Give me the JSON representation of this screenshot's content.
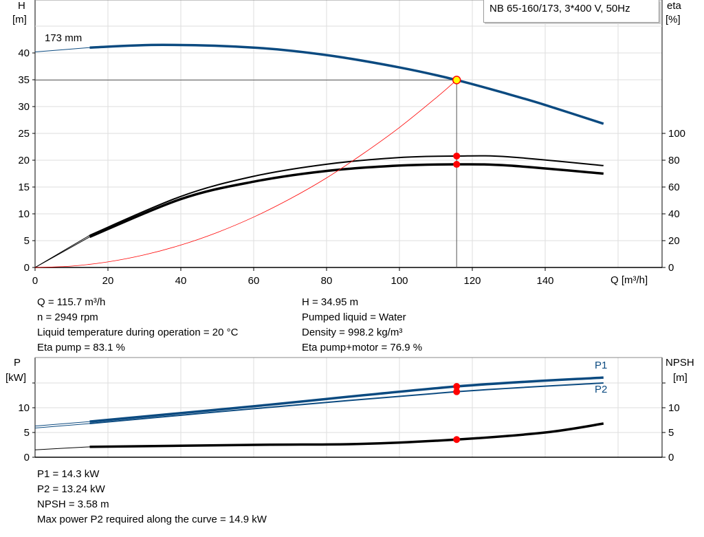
{
  "chart_data": [
    {
      "type": "line",
      "title": "NB 65-160/173, 3*400 V, 50Hz",
      "xlabel": "Q [m³/h]",
      "ylabel": [
        "H",
        "[m]"
      ],
      "y2label": [
        "eta",
        "[%]"
      ],
      "xlim": [
        0,
        170
      ],
      "ylim": [
        0,
        45
      ],
      "y2lim": [
        0,
        100
      ],
      "xticks": [
        0,
        20,
        40,
        60,
        80,
        100,
        120,
        140
      ],
      "yticks": [
        0,
        5,
        10,
        15,
        20,
        25,
        30,
        35,
        40
      ],
      "y2ticks": [
        0,
        20,
        40,
        60,
        80,
        100
      ],
      "grid": true,
      "curve_label": "173 mm",
      "series": [
        {
          "axis": "left",
          "color": "#0b4a80",
          "x": [
            0,
            15,
            35,
            60,
            80,
            100,
            115.7,
            130,
            140,
            156
          ],
          "y": [
            40.2,
            41,
            41.5,
            41,
            39.6,
            37.3,
            34.95,
            32.3,
            30.3,
            26.8
          ]
        },
        {
          "axis": "right",
          "color": "#000000",
          "x": [
            0,
            15,
            40,
            60,
            80,
            100,
            115.7,
            130,
            156
          ],
          "y": [
            0,
            24,
            53,
            68,
            77,
            82,
            83.1,
            82.5,
            76
          ]
        },
        {
          "axis": "right",
          "color": "#000000",
          "x": [
            0,
            15,
            40,
            60,
            80,
            100,
            115.7,
            130,
            156
          ],
          "y": [
            0,
            22.8,
            51,
            64,
            72,
            76,
            76.9,
            76,
            70
          ]
        },
        {
          "axis": "left",
          "color": "#ff0000",
          "x": [
            0,
            10,
            20,
            30,
            40,
            50,
            60,
            70,
            80,
            90,
            100,
            110,
            115.7
          ],
          "y": [
            0,
            0.26,
            1.04,
            2.35,
            4.18,
            6.53,
            9.4,
            12.8,
            16.7,
            21.2,
            26.1,
            31.6,
            34.95
          ]
        }
      ],
      "operating_point": {
        "Q": 115.7,
        "H": 34.95,
        "eta_pump": 83.1,
        "eta_total": 76.9
      }
    },
    {
      "type": "line",
      "xlim": [
        0,
        170
      ],
      "ylim": [
        0,
        18
      ],
      "ylabel": [
        "P",
        "[kW]"
      ],
      "y2label": [
        "NPSH",
        "[m]"
      ],
      "yticks": [
        0,
        5,
        10
      ],
      "y2ticks": [
        0,
        5,
        10
      ],
      "grid": true,
      "series": [
        {
          "name": "P1",
          "color": "#0b4a80",
          "x": [
            0,
            15,
            60,
            115.7,
            156
          ],
          "y": [
            6.3,
            7.2,
            10.3,
            14.3,
            16.1
          ]
        },
        {
          "name": "P2",
          "color": "#0b4a80",
          "x": [
            0,
            15,
            60,
            115.7,
            156
          ],
          "y": [
            5.9,
            6.8,
            9.8,
            13.24,
            15
          ]
        },
        {
          "color": "#000000",
          "x": [
            0,
            15,
            60,
            90,
            115.7,
            140,
            156
          ],
          "y": [
            1.5,
            2.1,
            2.5,
            2.7,
            3.58,
            5,
            6.8
          ]
        }
      ],
      "operating_point": {
        "Q": 115.7,
        "P1": 14.3,
        "P2": 13.24,
        "NPSH": 3.58
      }
    }
  ],
  "info_top_left": [
    "Q = 115.7 m³/h",
    "n = 2949 rpm",
    "Liquid temperature during operation = 20 °C",
    "Eta pump = 83.1 %"
  ],
  "info_top_right": [
    "H = 34.95 m",
    "Pumped liquid = Water",
    "Density = 998.2 kg/m³",
    "Eta pump+motor = 76.9 %"
  ],
  "info_bottom": [
    "P1 = 14.3 kW",
    "P2 = 13.24 kW",
    "NPSH = 3.58 m",
    "Max power P2 required along the curve = 14.9 kW"
  ]
}
